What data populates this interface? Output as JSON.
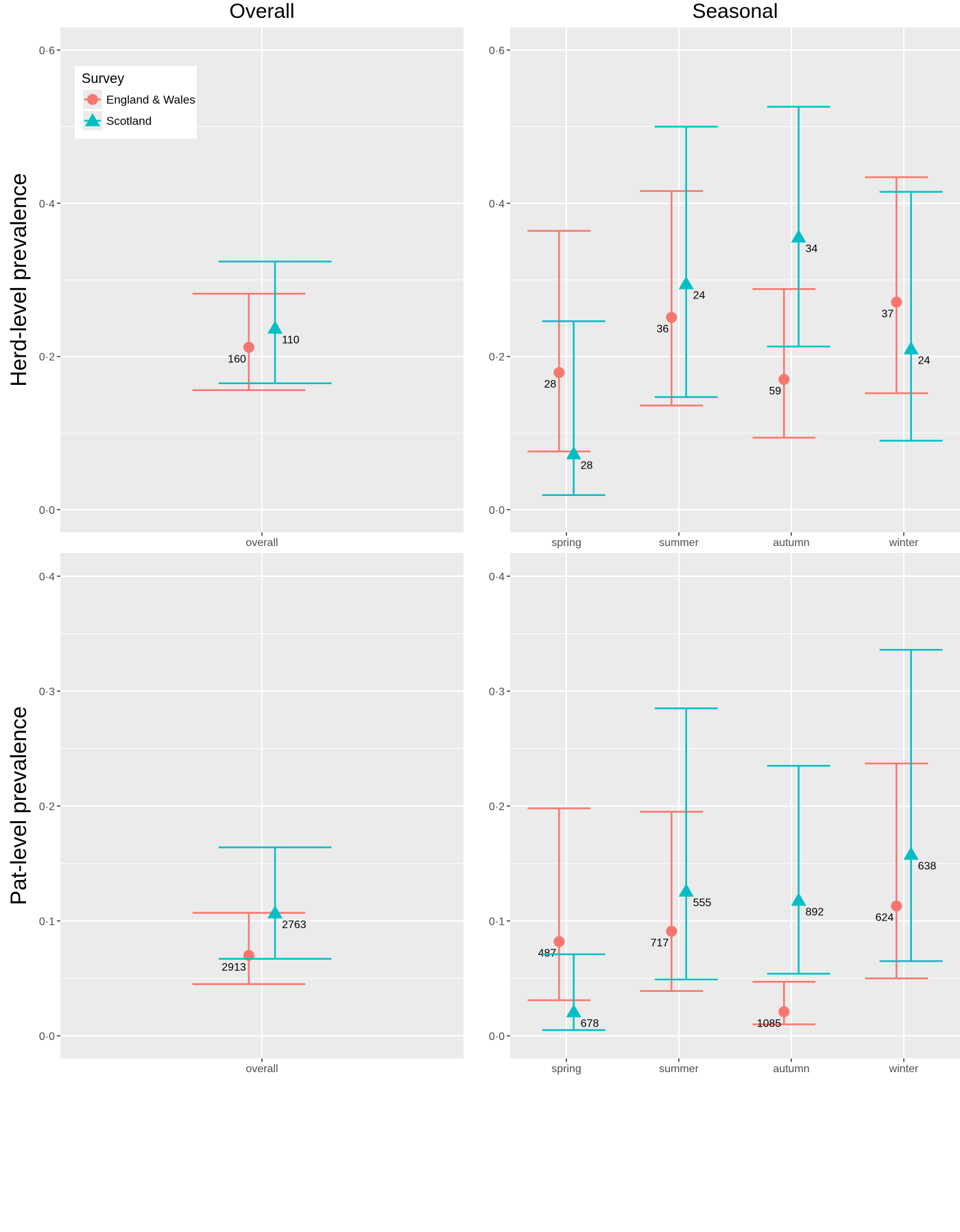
{
  "chart_data": {
    "type": "scatter",
    "subtype": "point-with-errorbars",
    "facet_columns": [
      "Overall",
      "Seasonal"
    ],
    "facet_rows": [
      "Herd-level prevalence",
      "Pat-level prevalence"
    ],
    "legend": {
      "title": "Survey",
      "placement": "top-left (inside Overall/Herd panel)",
      "entries": [
        {
          "name": "England & Wales",
          "color": "#F8766D",
          "shape": "circle"
        },
        {
          "name": "Scotland",
          "color": "#00BFC4",
          "shape": "triangle"
        }
      ]
    },
    "colors": {
      "panel_bg": "#EBEBEB",
      "grid": "#FFFFFF",
      "england_wales": "#F8766D",
      "scotland": "#00BFC4"
    },
    "panels": [
      {
        "row": "Herd-level prevalence",
        "column": "Overall",
        "ylabel": "Herd-level prevalence",
        "ylim": [
          -0.05,
          0.63
        ],
        "yticks": [
          0.0,
          0.2,
          0.4,
          0.6
        ],
        "ytick_labels": [
          "0·0",
          "0·2",
          "0·4",
          "0·6"
        ],
        "categories": [
          "overall"
        ],
        "series": [
          {
            "name": "England & Wales",
            "points": [
              {
                "x": "overall",
                "y": 0.212,
                "lower": 0.156,
                "upper": 0.282,
                "n": "160"
              }
            ]
          },
          {
            "name": "Scotland",
            "points": [
              {
                "x": "overall",
                "y": 0.237,
                "lower": 0.165,
                "upper": 0.324,
                "n": "110"
              }
            ]
          }
        ]
      },
      {
        "row": "Herd-level prevalence",
        "column": "Seasonal",
        "ylim": [
          -0.05,
          0.63
        ],
        "yticks": [
          0.0,
          0.2,
          0.4,
          0.6
        ],
        "ytick_labels": [
          "0·0",
          "0·2",
          "0·4",
          "0·6"
        ],
        "categories": [
          "spring",
          "summer",
          "autumn",
          "winter"
        ],
        "series": [
          {
            "name": "England & Wales",
            "points": [
              {
                "x": "spring",
                "y": 0.179,
                "lower": 0.076,
                "upper": 0.364,
                "n": "28"
              },
              {
                "x": "summer",
                "y": 0.251,
                "lower": 0.136,
                "upper": 0.416,
                "n": "36"
              },
              {
                "x": "autumn",
                "y": 0.17,
                "lower": 0.094,
                "upper": 0.288,
                "n": "59"
              },
              {
                "x": "winter",
                "y": 0.271,
                "lower": 0.152,
                "upper": 0.434,
                "n": "37"
              }
            ]
          },
          {
            "name": "Scotland",
            "points": [
              {
                "x": "spring",
                "y": 0.073,
                "lower": 0.019,
                "upper": 0.246,
                "n": "28"
              },
              {
                "x": "summer",
                "y": 0.295,
                "lower": 0.147,
                "upper": 0.5,
                "n": "24"
              },
              {
                "x": "autumn",
                "y": 0.356,
                "lower": 0.213,
                "upper": 0.526,
                "n": "34"
              },
              {
                "x": "winter",
                "y": 0.21,
                "lower": 0.09,
                "upper": 0.415,
                "n": "24"
              }
            ]
          }
        ]
      },
      {
        "row": "Pat-level prevalence",
        "column": "Overall",
        "ylabel": "Pat-level prevalence",
        "ylim": [
          -0.02,
          0.42
        ],
        "yticks": [
          0.0,
          0.1,
          0.2,
          0.3,
          0.4
        ],
        "ytick_labels": [
          "0·0",
          "0·1",
          "0·2",
          "0·3",
          "0·4"
        ],
        "categories": [
          "overall"
        ],
        "series": [
          {
            "name": "England & Wales",
            "points": [
              {
                "x": "overall",
                "y": 0.07,
                "lower": 0.045,
                "upper": 0.107,
                "n": "2913"
              }
            ]
          },
          {
            "name": "Scotland",
            "points": [
              {
                "x": "overall",
                "y": 0.107,
                "lower": 0.067,
                "upper": 0.164,
                "n": "2763"
              }
            ]
          }
        ]
      },
      {
        "row": "Pat-level prevalence",
        "column": "Seasonal",
        "ylim": [
          -0.02,
          0.42
        ],
        "yticks": [
          0.0,
          0.1,
          0.2,
          0.3,
          0.4
        ],
        "ytick_labels": [
          "0·0",
          "0·1",
          "0·2",
          "0·3",
          "0·4"
        ],
        "categories": [
          "spring",
          "summer",
          "autumn",
          "winter"
        ],
        "series": [
          {
            "name": "England & Wales",
            "points": [
              {
                "x": "spring",
                "y": 0.082,
                "lower": 0.031,
                "upper": 0.198,
                "n": "487"
              },
              {
                "x": "summer",
                "y": 0.091,
                "lower": 0.039,
                "upper": 0.195,
                "n": "717"
              },
              {
                "x": "autumn",
                "y": 0.021,
                "lower": 0.01,
                "upper": 0.047,
                "n": "1085"
              },
              {
                "x": "winter",
                "y": 0.113,
                "lower": 0.05,
                "upper": 0.237,
                "n": "624"
              }
            ]
          },
          {
            "name": "Scotland",
            "points": [
              {
                "x": "spring",
                "y": 0.021,
                "lower": 0.005,
                "upper": 0.071,
                "n": "678"
              },
              {
                "x": "summer",
                "y": 0.126,
                "lower": 0.049,
                "upper": 0.285,
                "n": "555"
              },
              {
                "x": "autumn",
                "y": 0.118,
                "lower": 0.054,
                "upper": 0.235,
                "n": "892"
              },
              {
                "x": "winter",
                "y": 0.158,
                "lower": 0.065,
                "upper": 0.336,
                "n": "638"
              }
            ]
          }
        ]
      }
    ]
  }
}
